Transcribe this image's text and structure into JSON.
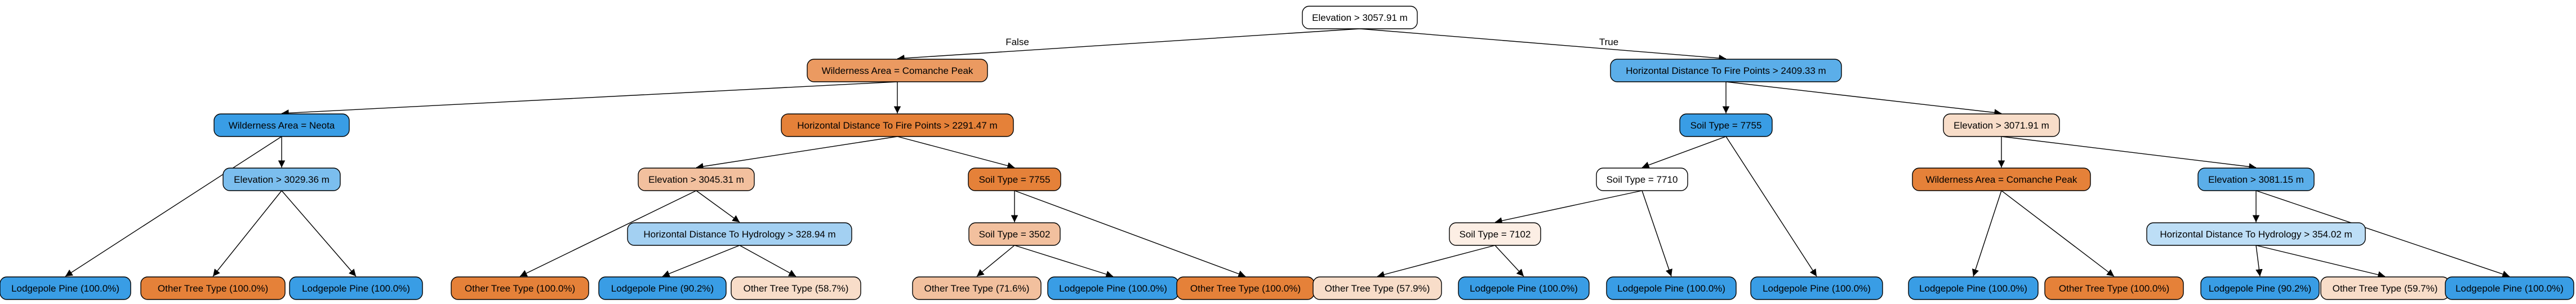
{
  "edge_labels": {
    "left": "False",
    "right": "True"
  },
  "colors": {
    "white": "#ffffff",
    "orange_dark": "#e58139",
    "orange_mid": "#eb9a61",
    "orange_light": "#f2c09e",
    "orange_pale": "#f8ddc9",
    "orange_faint": "#fceee4",
    "blue_dark": "#399de5",
    "blue_mid": "#5baee9",
    "blue_light": "#7bbeee",
    "blue_pale": "#a3d0f2",
    "blue_faint": "#bddef6",
    "stroke": "#000000"
  },
  "nodes": [
    {
      "id": "n0",
      "label": "Elevation > 3057.91 m",
      "fill": "white"
    },
    {
      "id": "n1",
      "label": "Wilderness Area = Comanche Peak",
      "fill": "orange_mid"
    },
    {
      "id": "n2",
      "label": "Horizontal Distance To Fire Points > 2409.33 m",
      "fill": "blue_mid"
    },
    {
      "id": "n3",
      "label": "Wilderness Area = Neota",
      "fill": "blue_dark"
    },
    {
      "id": "n4",
      "label": "Horizontal Distance To Fire Points > 2291.47 m",
      "fill": "orange_dark"
    },
    {
      "id": "n5",
      "label": "Soil Type = 7755",
      "fill": "blue_dark"
    },
    {
      "id": "n6",
      "label": "Elevation > 3071.91 m",
      "fill": "orange_pale"
    },
    {
      "id": "n7",
      "label": "Elevation > 3029.36 m",
      "fill": "blue_light"
    },
    {
      "id": "n8",
      "label": "Elevation > 3045.31 m",
      "fill": "orange_light"
    },
    {
      "id": "n9",
      "label": "Soil Type = 7755",
      "fill": "orange_dark"
    },
    {
      "id": "n10",
      "label": "Soil Type = 7710",
      "fill": "white"
    },
    {
      "id": "n11",
      "label": "Wilderness Area = Comanche Peak",
      "fill": "orange_dark"
    },
    {
      "id": "n12",
      "label": "Elevation > 3081.15 m",
      "fill": "blue_mid"
    },
    {
      "id": "n13",
      "label": "Horizontal Distance To Hydrology > 328.94 m",
      "fill": "blue_pale"
    },
    {
      "id": "n14",
      "label": "Soil Type = 3502",
      "fill": "orange_light"
    },
    {
      "id": "n15",
      "label": "Soil Type = 7102",
      "fill": "orange_faint"
    },
    {
      "id": "n16",
      "label": "Horizontal Distance To Hydrology > 354.02 m",
      "fill": "blue_faint"
    },
    {
      "id": "l1",
      "label": "Lodgepole Pine (100.0%)",
      "fill": "blue_dark"
    },
    {
      "id": "l2",
      "label": "Other Tree Type (100.0%)",
      "fill": "orange_dark"
    },
    {
      "id": "l3",
      "label": "Lodgepole Pine (100.0%)",
      "fill": "blue_dark"
    },
    {
      "id": "l4",
      "label": "Other Tree Type (100.0%)",
      "fill": "orange_dark"
    },
    {
      "id": "l5",
      "label": "Lodgepole Pine (90.2%)",
      "fill": "blue_dark"
    },
    {
      "id": "l6",
      "label": "Other Tree Type (58.7%)",
      "fill": "orange_pale"
    },
    {
      "id": "l7",
      "label": "Other Tree Type (71.6%)",
      "fill": "orange_light"
    },
    {
      "id": "l8",
      "label": "Lodgepole Pine (100.0%)",
      "fill": "blue_dark"
    },
    {
      "id": "l9",
      "label": "Other Tree Type (100.0%)",
      "fill": "orange_dark"
    },
    {
      "id": "l10",
      "label": "Other Tree Type (57.9%)",
      "fill": "orange_pale"
    },
    {
      "id": "l11",
      "label": "Lodgepole Pine (100.0%)",
      "fill": "blue_dark"
    },
    {
      "id": "l12",
      "label": "Lodgepole Pine (100.0%)",
      "fill": "blue_dark"
    },
    {
      "id": "l13",
      "label": "Lodgepole Pine (100.0%)",
      "fill": "blue_dark"
    },
    {
      "id": "l14",
      "label": "Lodgepole Pine (100.0%)",
      "fill": "blue_dark"
    },
    {
      "id": "l15",
      "label": "Other Tree Type (100.0%)",
      "fill": "orange_dark"
    },
    {
      "id": "l16",
      "label": "Lodgepole Pine (90.2%)",
      "fill": "blue_dark"
    },
    {
      "id": "l17",
      "label": "Other Tree Type (59.7%)",
      "fill": "orange_pale"
    },
    {
      "id": "l18",
      "label": "Lodgepole Pine (100.0%)",
      "fill": "blue_dark"
    }
  ],
  "edges": [
    {
      "from": "n0",
      "to": "n1",
      "label": "left"
    },
    {
      "from": "n0",
      "to": "n2",
      "label": "right"
    },
    {
      "from": "n1",
      "to": "n3"
    },
    {
      "from": "n1",
      "to": "n4"
    },
    {
      "from": "n2",
      "to": "n5"
    },
    {
      "from": "n2",
      "to": "n6"
    },
    {
      "from": "n3",
      "to": "l1"
    },
    {
      "from": "n3",
      "to": "n7"
    },
    {
      "from": "n7",
      "to": "l2"
    },
    {
      "from": "n7",
      "to": "l3"
    },
    {
      "from": "n4",
      "to": "n8"
    },
    {
      "from": "n4",
      "to": "n9"
    },
    {
      "from": "n8",
      "to": "l4"
    },
    {
      "from": "n8",
      "to": "n13"
    },
    {
      "from": "n13",
      "to": "l5"
    },
    {
      "from": "n13",
      "to": "l6"
    },
    {
      "from": "n9",
      "to": "n14"
    },
    {
      "from": "n9",
      "to": "l9"
    },
    {
      "from": "n14",
      "to": "l7"
    },
    {
      "from": "n14",
      "to": "l8"
    },
    {
      "from": "n5",
      "to": "n10"
    },
    {
      "from": "n5",
      "to": "l13"
    },
    {
      "from": "n10",
      "to": "n15"
    },
    {
      "from": "n10",
      "to": "l12"
    },
    {
      "from": "n15",
      "to": "l10"
    },
    {
      "from": "n15",
      "to": "l11"
    },
    {
      "from": "n6",
      "to": "n11"
    },
    {
      "from": "n6",
      "to": "n12"
    },
    {
      "from": "n11",
      "to": "l14"
    },
    {
      "from": "n11",
      "to": "l15"
    },
    {
      "from": "n12",
      "to": "n16"
    },
    {
      "from": "n12",
      "to": "l18"
    },
    {
      "from": "n16",
      "to": "l16"
    },
    {
      "from": "n16",
      "to": "l17"
    }
  ]
}
